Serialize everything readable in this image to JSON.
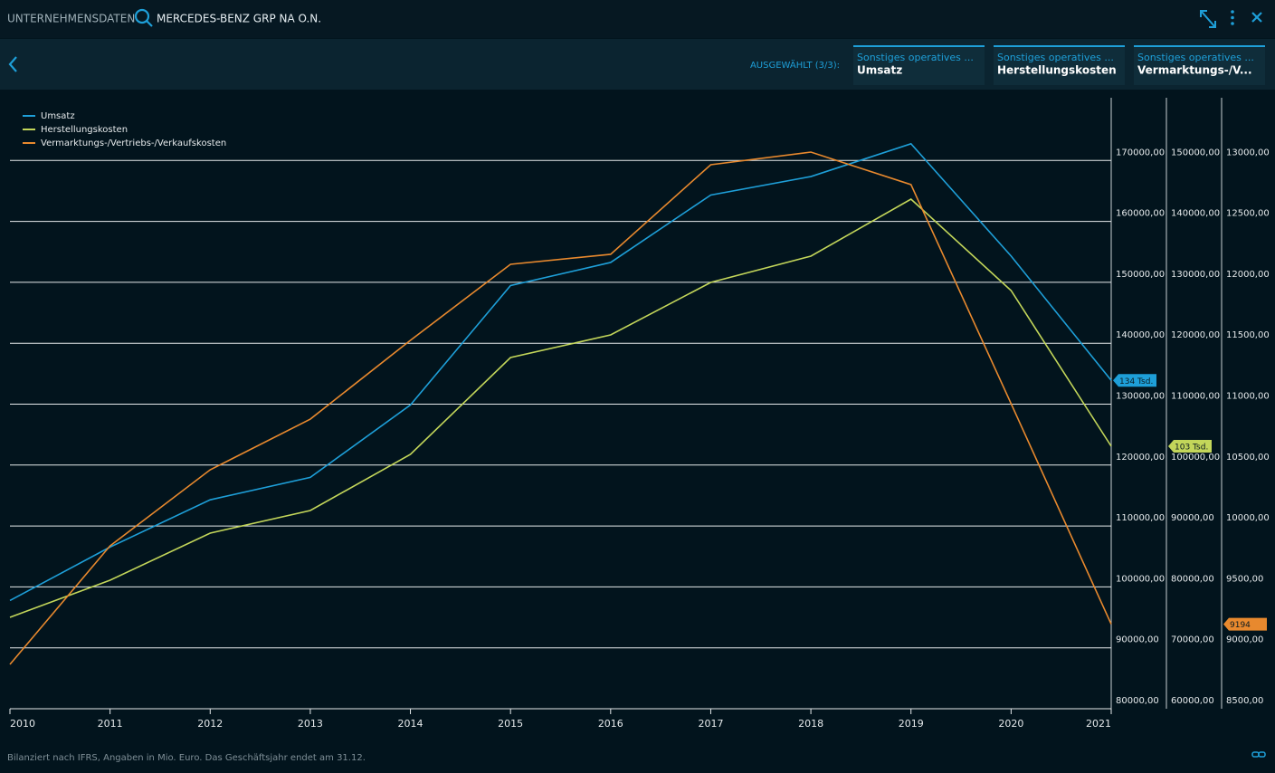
{
  "header": {
    "section": "UNTERNEHMENSDATEN",
    "company": "MERCEDES-BENZ GRP NA O.N."
  },
  "toolbar": {
    "selected": "AUSGEWÄHLT (3/3):",
    "tabs": [
      {
        "category": "Sonstiges operatives ...",
        "name": "Umsatz"
      },
      {
        "category": "Sonstiges operatives ...",
        "name": "Herstellungskosten"
      },
      {
        "category": "Sonstiges operatives ...",
        "name": "Vermarktungs-/V..."
      }
    ]
  },
  "chart_data": {
    "type": "line",
    "grid": true,
    "legend": "top-left",
    "x": [
      2010,
      2011,
      2012,
      2013,
      2014,
      2015,
      2016,
      2017,
      2018,
      2019,
      2020,
      2021
    ],
    "xlim": [
      2010,
      2021
    ],
    "xticks": [
      2010,
      2011,
      2012,
      2013,
      2014,
      2015,
      2016,
      2017,
      2018,
      2019,
      2020,
      2021
    ],
    "series": [
      {
        "name": "Umsatz",
        "color": "#1e9fd8",
        "axis": "y",
        "end_label": "134 Tsd.",
        "values": [
          97761,
          106540,
          114297,
          117982,
          129872,
          149467,
          153261,
          164330,
          167362,
          172745,
          154309,
          133893
        ]
      },
      {
        "name": "Herstellungskosten",
        "color": "#c3d65a",
        "axis": "y2",
        "end_label": "103 Tsd.",
        "values": [
          75007,
          81100,
          88826,
          92541,
          101753,
          117652,
          121367,
          129985,
          134294,
          143655,
          128648,
          103091
        ]
      },
      {
        "name": "Vermarktungs-/Vertriebs-/Verkaufskosten",
        "color": "#e8892e",
        "axis": "y3",
        "end_label": "9194",
        "values": [
          8864,
          9837,
          10461,
          10877,
          11524,
          12148,
          12230,
          12965,
          13069,
          12802,
          11004,
          9194
        ]
      }
    ],
    "ylim": [
      80000,
      180000
    ],
    "yticks": [
      {
        "value": 80000,
        "label": "80000,00"
      },
      {
        "value": 90000,
        "label": "90000,00"
      },
      {
        "value": 100000,
        "label": "100000,00"
      },
      {
        "value": 110000,
        "label": "110000,00"
      },
      {
        "value": 120000,
        "label": "120000,00"
      },
      {
        "value": 130000,
        "label": "130000,00"
      },
      {
        "value": 140000,
        "label": "140000,00"
      },
      {
        "value": 150000,
        "label": "150000,00"
      },
      {
        "value": 160000,
        "label": "160000,00"
      },
      {
        "value": 170000,
        "label": "170000,00"
      }
    ],
    "y2lim": [
      60000,
      160000
    ],
    "y2ticks": [
      {
        "value": 60000,
        "label": "60000,00"
      },
      {
        "value": 70000,
        "label": "70000,00"
      },
      {
        "value": 80000,
        "label": "80000,00"
      },
      {
        "value": 90000,
        "label": "90000,00"
      },
      {
        "value": 100000,
        "label": "100000,00"
      },
      {
        "value": 110000,
        "label": "110000,00"
      },
      {
        "value": 120000,
        "label": "120000,00"
      },
      {
        "value": 130000,
        "label": "130000,00"
      },
      {
        "value": 140000,
        "label": "140000,00"
      },
      {
        "value": 150000,
        "label": "150000,00"
      }
    ],
    "y3lim": [
      8500,
      13500
    ],
    "y3ticks": [
      {
        "value": 8500,
        "label": "8500,00"
      },
      {
        "value": 9000,
        "label": "9000,00"
      },
      {
        "value": 9500,
        "label": "9500,00"
      },
      {
        "value": 10000,
        "label": "10000,00"
      },
      {
        "value": 10500,
        "label": "10500,00"
      },
      {
        "value": 11000,
        "label": "11000,00"
      },
      {
        "value": 11500,
        "label": "11500,00"
      },
      {
        "value": 12000,
        "label": "12000,00"
      },
      {
        "value": 12500,
        "label": "12500,00"
      },
      {
        "value": 13000,
        "label": "13000,00"
      }
    ]
  },
  "footer": {
    "note": "Bilanziert nach IFRS, Angaben in Mio. Euro. Das Geschäftsjahr endet am 31.12."
  }
}
